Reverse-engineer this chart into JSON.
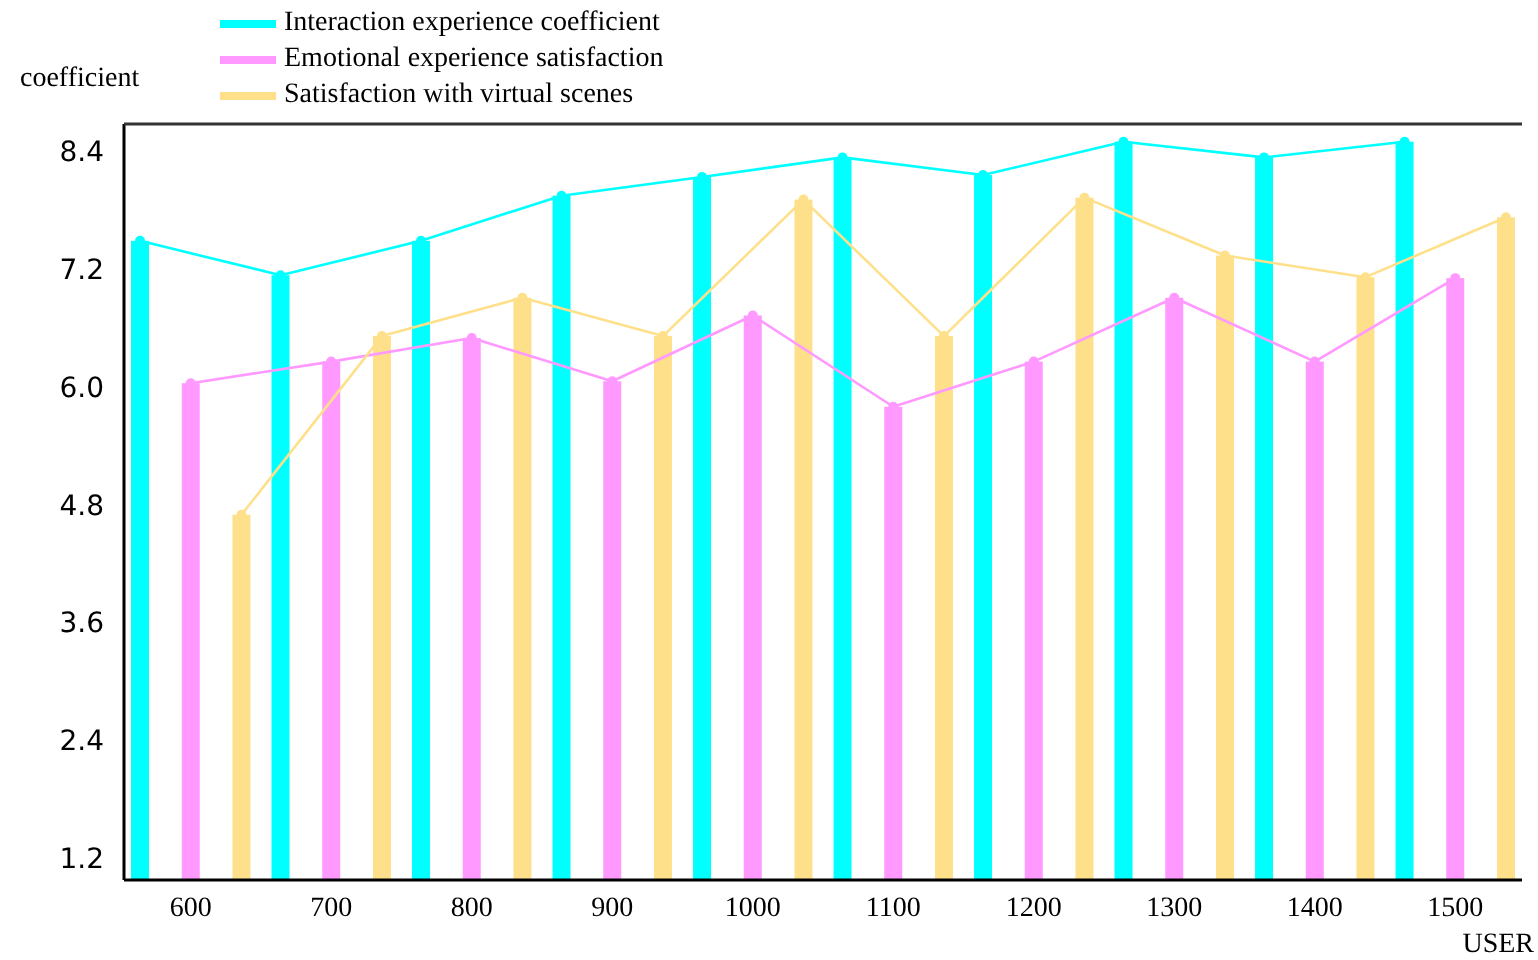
{
  "chart_data": {
    "type": "bar",
    "ylabel": "coefficient",
    "xlabel": "USER",
    "categories": [
      "600",
      "700",
      "800",
      "900",
      "1000",
      "1100",
      "1200",
      "1300",
      "1400",
      "1500"
    ],
    "series": [
      {
        "name": "Interaction experience coefficient",
        "color": "#00ffff",
        "values": [
          7.51,
          7.16,
          7.51,
          7.97,
          8.16,
          8.36,
          8.18,
          8.52,
          8.36,
          8.52
        ]
      },
      {
        "name": "Emotional experience satisfaction",
        "color": "#ff99ff",
        "values": [
          6.06,
          6.28,
          6.52,
          6.08,
          6.75,
          5.82,
          6.28,
          6.93,
          6.28,
          7.13
        ]
      },
      {
        "name": "Satisfaction with virtual scenes",
        "color": "#ffe08a",
        "values": [
          4.72,
          6.54,
          6.93,
          6.54,
          7.93,
          6.54,
          7.95,
          7.36,
          7.14,
          7.75
        ]
      },
      {
        "type": "line",
        "color": "#00ffff",
        "values": [
          7.51,
          7.16,
          7.51,
          7.97,
          8.16,
          8.36,
          8.18,
          8.52,
          8.36,
          8.52
        ]
      },
      {
        "type": "line",
        "color": "#ff99ff",
        "values": [
          6.06,
          6.28,
          6.52,
          6.08,
          6.75,
          5.82,
          6.28,
          6.93,
          6.28,
          7.13
        ]
      },
      {
        "type": "line",
        "color": "#ffe08a",
        "values": [
          4.72,
          6.54,
          6.93,
          6.54,
          7.93,
          6.54,
          7.95,
          7.36,
          7.14,
          7.75
        ]
      }
    ],
    "ylim": [
      1.0,
      8.7
    ],
    "yticks": [
      1.2,
      2.4,
      3.6,
      4.8,
      {
        "value": 6,
        "label": "6.0"
      },
      7.2,
      8.4
    ],
    "grid": false,
    "legend": "top",
    "marker": "circle",
    "line_style": "solid"
  }
}
